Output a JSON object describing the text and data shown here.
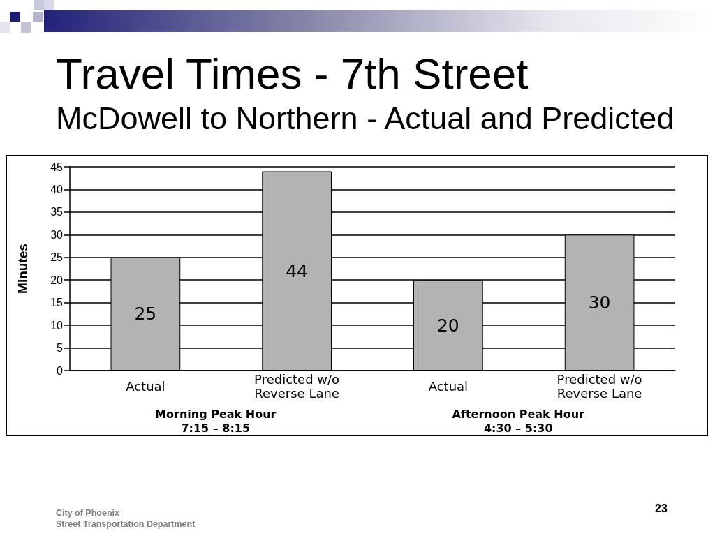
{
  "chart_data": {
    "type": "bar",
    "title": "Travel Times - 7th Street",
    "subtitle": "McDowell to Northern - Actual and Predicted",
    "ylabel": "Minutes",
    "categories": [
      "Actual",
      "Predicted w/o\nReverse Lane",
      "Actual",
      "Predicted w/o\nReverse Lane"
    ],
    "values": [
      25,
      44,
      20,
      30
    ],
    "color": "#b3b3b3",
    "data_labels": true,
    "ylim": [
      0,
      45
    ],
    "yticks": [
      0,
      5,
      10,
      15,
      20,
      25,
      30,
      35,
      40,
      45
    ],
    "grid": "y",
    "annotations": [
      "Morning Peak Hour\n7:15 – 8:15",
      "Afternoon Peak Hour\n4:30 – 5:30",
      "City of Phoenix\nStreet Transportation Department",
      "23"
    ]
  }
}
